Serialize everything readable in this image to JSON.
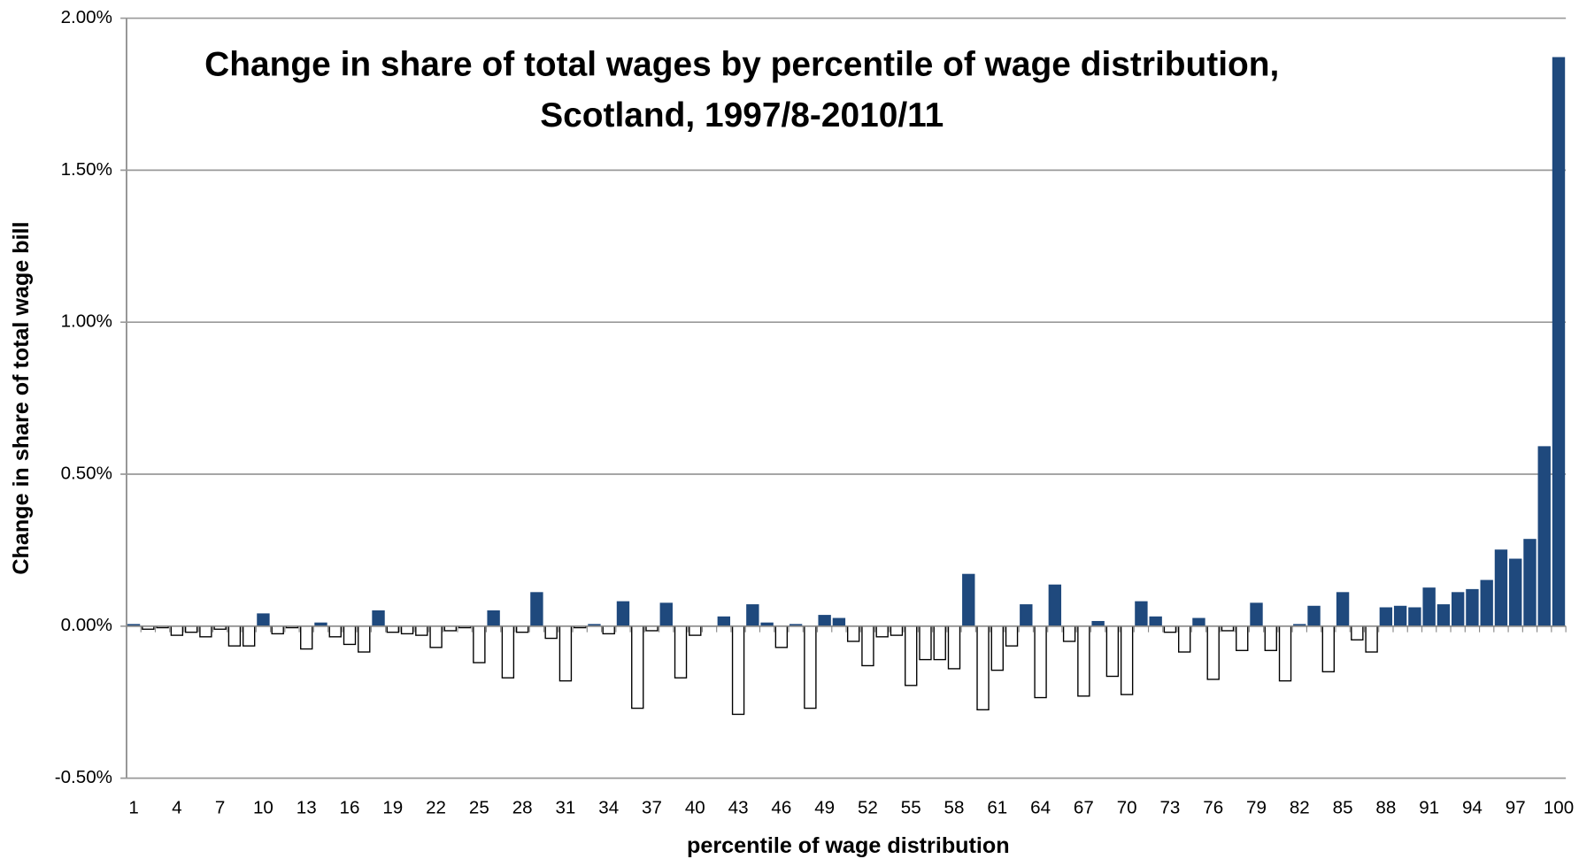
{
  "chart_data": {
    "type": "bar",
    "title": [
      "Change in share of total wages by percentile of wage distribution,",
      "Scotland, 1997/8-2010/11"
    ],
    "x_label": "percentile of wage distribution",
    "y_label": "Change in share of total wage bill",
    "categories": [
      "1",
      null,
      null,
      "4",
      null,
      null,
      "7",
      null,
      null,
      "10",
      null,
      null,
      "13",
      null,
      null,
      "16",
      null,
      null,
      "19",
      null,
      null,
      "22",
      null,
      null,
      "25",
      null,
      null,
      "28",
      null,
      null,
      "31",
      null,
      null,
      "34",
      null,
      null,
      "37",
      null,
      null,
      "40",
      null,
      null,
      "43",
      null,
      null,
      "46",
      null,
      null,
      "49",
      null,
      null,
      "52",
      null,
      null,
      "55",
      null,
      null,
      "58",
      null,
      null,
      "61",
      null,
      null,
      "64",
      null,
      null,
      "67",
      null,
      null,
      "70",
      null,
      null,
      "73",
      null,
      null,
      "76",
      null,
      null,
      "79",
      null,
      null,
      "82",
      null,
      null,
      "85",
      null,
      null,
      "88",
      null,
      null,
      "91",
      null,
      null,
      "94",
      null,
      null,
      "97",
      null,
      null,
      "100"
    ],
    "values": [
      0.005,
      -0.01,
      -0.005,
      -0.03,
      -0.02,
      -0.035,
      -0.01,
      -0.065,
      -0.065,
      0.04,
      -0.025,
      -0.005,
      -0.075,
      0.01,
      -0.035,
      -0.06,
      -0.085,
      0.05,
      -0.02,
      -0.025,
      -0.03,
      -0.07,
      -0.015,
      -0.005,
      -0.12,
      0.05,
      -0.17,
      -0.02,
      0.11,
      -0.04,
      -0.18,
      -0.005,
      0.005,
      -0.025,
      0.08,
      -0.27,
      -0.015,
      0.075,
      -0.17,
      -0.03,
      0.0,
      0.03,
      -0.29,
      0.07,
      0.01,
      -0.07,
      0.005,
      -0.27,
      0.035,
      0.025,
      -0.05,
      -0.13,
      -0.035,
      -0.03,
      -0.195,
      -0.11,
      -0.11,
      -0.14,
      0.17,
      -0.275,
      -0.145,
      -0.065,
      0.07,
      -0.235,
      0.135,
      -0.05,
      -0.23,
      0.015,
      -0.165,
      -0.225,
      0.08,
      0.03,
      -0.02,
      -0.085,
      0.025,
      -0.175,
      -0.015,
      -0.08,
      0.075,
      -0.08,
      -0.18,
      0.005,
      0.065,
      -0.15,
      0.11,
      -0.045,
      -0.085,
      0.06,
      0.065,
      0.06,
      0.125,
      0.07,
      0.11,
      0.12,
      0.15,
      0.25,
      0.22,
      0.285,
      0.59,
      1.87
    ],
    "color": "#1f497d",
    "negative_color": "#ffffff",
    "ylim": [
      -0.5,
      2.0
    ],
    "yticks": [
      {
        "value": -0.5,
        "label": "-0.50%"
      },
      {
        "value": 0.0,
        "label": "0.00%"
      },
      {
        "value": 0.5,
        "label": "0.50%"
      },
      {
        "value": 1.0,
        "label": "1.00%"
      },
      {
        "value": 1.5,
        "label": "1.50%"
      },
      {
        "value": 2.0,
        "label": "2.00%"
      }
    ],
    "grid": true
  }
}
